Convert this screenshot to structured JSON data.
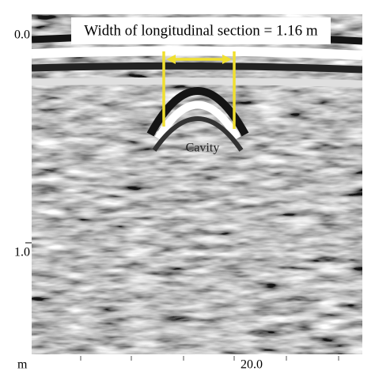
{
  "annotation": {
    "text": "Width of longitudinal section = 1.16 m"
  },
  "target_label": "Cavity",
  "depth_axis": {
    "labels": [
      "0.0",
      "1.0"
    ],
    "unit": "m"
  },
  "distance_axis": {
    "labels": [
      "20.0"
    ]
  }
}
